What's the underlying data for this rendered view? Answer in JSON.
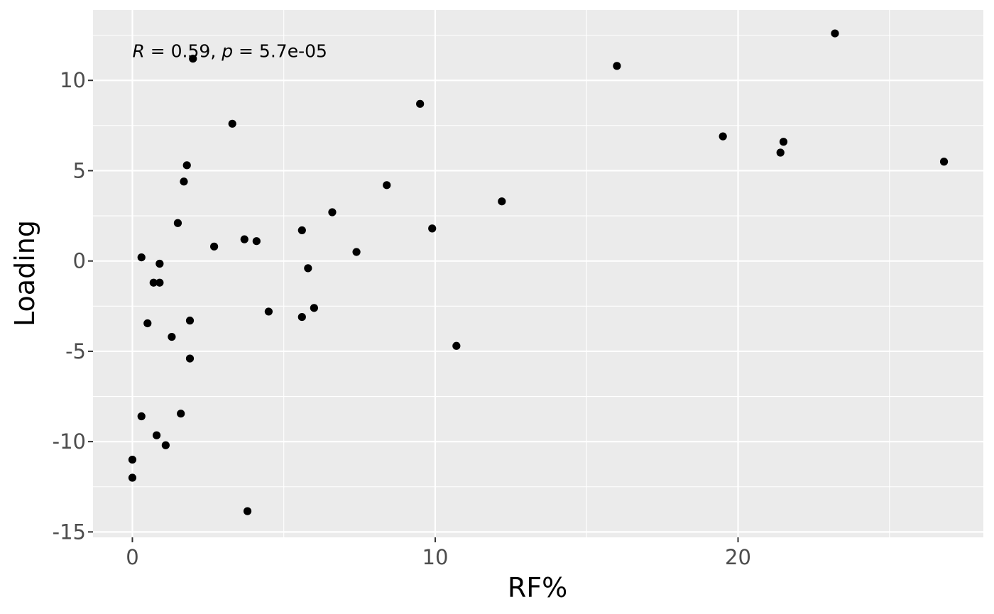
{
  "chart_data": {
    "type": "scatter",
    "title": "",
    "xlabel": "RF%",
    "ylabel": "Loading",
    "xlim": [
      -1.3,
      28.1
    ],
    "ylim": [
      -15.3,
      13.9
    ],
    "x_ticks": [
      0,
      10,
      20
    ],
    "x_tick_labels": [
      "0",
      "10",
      "20"
    ],
    "x_minor_ticks": [
      5,
      15,
      25
    ],
    "y_ticks": [
      -15,
      -10,
      -5,
      0,
      5,
      10
    ],
    "y_tick_labels": [
      "-15",
      "-10",
      "-5",
      "0",
      "5",
      "10"
    ],
    "y_minor_ticks": [
      -12.5,
      -7.5,
      -2.5,
      2.5,
      7.5,
      12.5
    ],
    "grid": true,
    "legend": "none",
    "annotation": {
      "r_symbol": "R",
      "r_value": " = 0.59, ",
      "p_symbol": "p",
      "p_value": " = 5.7e-05",
      "x": 0,
      "y": 11.6
    },
    "colors": {
      "panel_background": "#ebebeb",
      "grid": "#ffffff",
      "point": "#000000",
      "tick_text": "#4d4d4d",
      "axis_tick": "#333333"
    },
    "series": [
      {
        "x": [
          2.0,
          23.2,
          16.0,
          9.5,
          3.3,
          19.5,
          21.5,
          21.4,
          26.8,
          1.8,
          1.7,
          8.4,
          12.2,
          6.6,
          1.5,
          5.6,
          9.9,
          3.7,
          4.1,
          2.7,
          7.4,
          0.3,
          0.9,
          5.8,
          0.7,
          0.9,
          6.0,
          4.5,
          5.6,
          1.9,
          0.5,
          1.3,
          10.7,
          1.9,
          1.6,
          0.3,
          0.8,
          1.1,
          0.0,
          0.0,
          3.8
        ],
        "y": [
          11.2,
          12.6,
          10.8,
          8.7,
          7.6,
          6.9,
          6.6,
          6.0,
          5.5,
          5.3,
          4.4,
          4.2,
          3.3,
          2.7,
          2.1,
          1.7,
          1.8,
          1.2,
          1.1,
          0.8,
          0.5,
          0.2,
          -0.15,
          -0.4,
          -1.2,
          -1.2,
          -2.6,
          -2.8,
          -3.1,
          -3.3,
          -3.45,
          -4.2,
          -4.7,
          -5.4,
          -8.45,
          -8.6,
          -9.65,
          -10.2,
          -11.0,
          -12.0,
          -13.85
        ]
      }
    ]
  }
}
